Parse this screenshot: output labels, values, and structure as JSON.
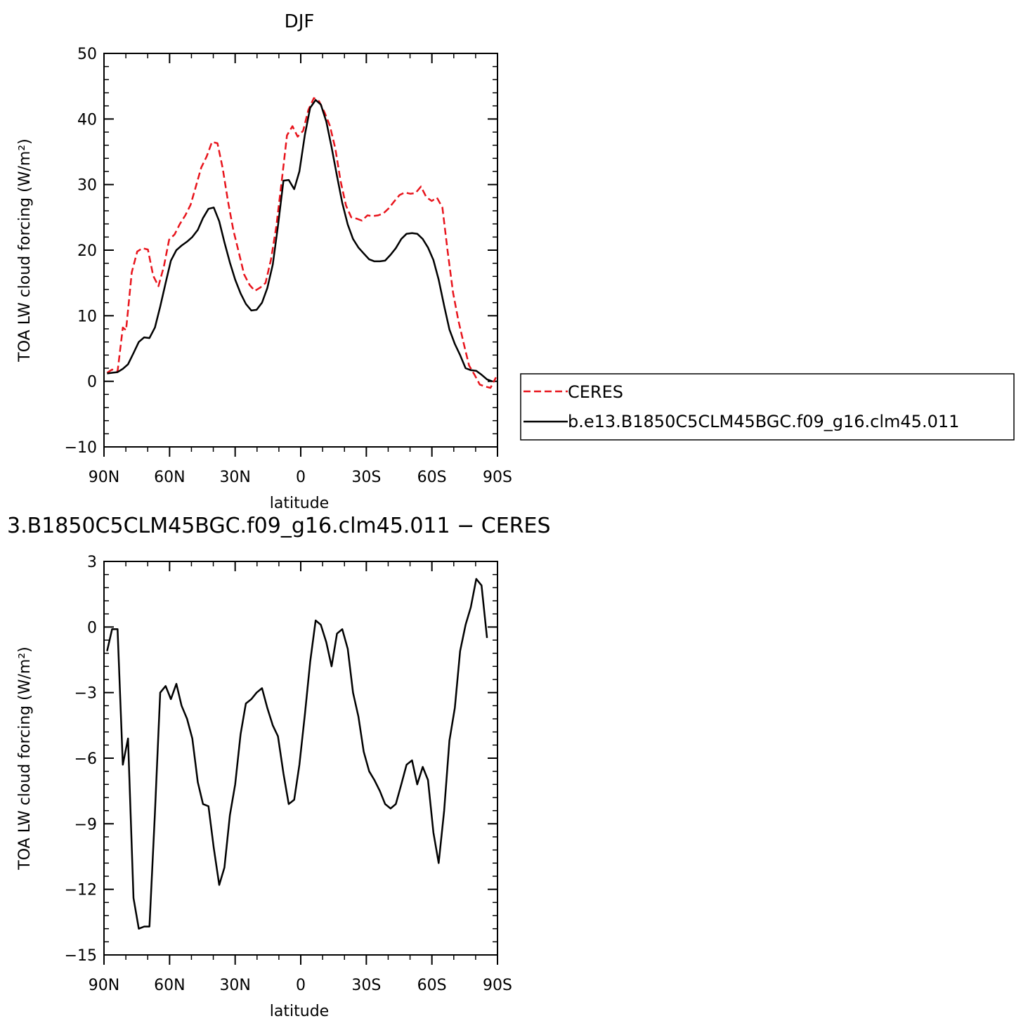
{
  "chart_data": [
    {
      "type": "line",
      "title": "DJF",
      "xlabel": "latitude",
      "ylabel": "TOA LW cloud forcing (W/m²)",
      "xlim": [
        -90,
        90
      ],
      "ylim": [
        -10,
        50
      ],
      "x_ticks": [
        -90,
        -60,
        -30,
        0,
        30,
        60,
        90
      ],
      "x_tick_labels": [
        "90N",
        "60N",
        "30N",
        "0",
        "30S",
        "60S",
        "90S"
      ],
      "y_ticks": [
        -10,
        0,
        10,
        20,
        30,
        40,
        50
      ],
      "y_tick_labels": [
        "−10",
        "0",
        "10",
        "20",
        "30",
        "40",
        "50"
      ],
      "legend_position": "right",
      "series": [
        {
          "name": "CERES",
          "color": "#e8141c",
          "dash": "dashed",
          "points": [
            [
              -88.6,
              1.3
            ],
            [
              -86.3,
              1.8
            ],
            [
              -83.8,
              1.5
            ],
            [
              -81.4,
              8.2
            ],
            [
              -79.9,
              7.8
            ],
            [
              -77.3,
              16.6
            ],
            [
              -74.8,
              19.8
            ],
            [
              -72.4,
              20.3
            ],
            [
              -69.9,
              20.1
            ],
            [
              -67.5,
              16.1
            ],
            [
              -65.1,
              14.5
            ],
            [
              -62.6,
              17.5
            ],
            [
              -60.2,
              21.6
            ],
            [
              -57.7,
              22.4
            ],
            [
              -55.3,
              24.0
            ],
            [
              -52.8,
              25.3
            ],
            [
              -50.4,
              26.9
            ],
            [
              -47.9,
              29.8
            ],
            [
              -45.5,
              32.6
            ],
            [
              -43.0,
              34.3
            ],
            [
              -40.6,
              36.5
            ],
            [
              -38.1,
              36.3
            ],
            [
              -35.7,
              32.5
            ],
            [
              -33.2,
              27.3
            ],
            [
              -30.8,
              23.0
            ],
            [
              -28.3,
              19.6
            ],
            [
              -25.9,
              16.3
            ],
            [
              -23.4,
              14.7
            ],
            [
              -21.0,
              13.8
            ],
            [
              -18.5,
              14.3
            ],
            [
              -16.1,
              15.0
            ],
            [
              -13.6,
              18.6
            ],
            [
              -11.2,
              23.6
            ],
            [
              -8.7,
              30.5
            ],
            [
              -6.3,
              37.5
            ],
            [
              -3.8,
              38.9
            ],
            [
              -1.4,
              37.3
            ],
            [
              1.1,
              38.2
            ],
            [
              3.5,
              41.4
            ],
            [
              6.0,
              43.2
            ],
            [
              8.4,
              42.7
            ],
            [
              10.9,
              41.0
            ],
            [
              13.3,
              39.0
            ],
            [
              15.8,
              35.5
            ],
            [
              18.2,
              30.6
            ],
            [
              20.7,
              26.8
            ],
            [
              23.1,
              25.0
            ],
            [
              25.6,
              24.8
            ],
            [
              28.0,
              24.5
            ],
            [
              30.5,
              25.3
            ],
            [
              32.9,
              25.2
            ],
            [
              35.4,
              25.3
            ],
            [
              37.8,
              25.6
            ],
            [
              40.3,
              26.4
            ],
            [
              42.7,
              27.4
            ],
            [
              45.2,
              28.4
            ],
            [
              47.6,
              28.8
            ],
            [
              50.1,
              28.6
            ],
            [
              52.5,
              28.7
            ],
            [
              55.0,
              29.7
            ],
            [
              57.4,
              28.1
            ],
            [
              59.9,
              27.5
            ],
            [
              62.3,
              28.0
            ],
            [
              64.8,
              26.5
            ],
            [
              67.2,
              19.8
            ],
            [
              69.7,
              13.5
            ],
            [
              72.1,
              9.3
            ],
            [
              74.6,
              5.7
            ],
            [
              77.0,
              2.4
            ],
            [
              79.5,
              1.0
            ],
            [
              81.9,
              -0.5
            ],
            [
              84.4,
              -0.8
            ],
            [
              86.8,
              -1.0
            ],
            [
              89.3,
              0.6
            ]
          ]
        },
        {
          "name": "b.e13.B1850C5CLM45BGC.f09_g16.clm45.011",
          "color": "#000000",
          "dash": "solid",
          "points": [
            [
              -88.6,
              1.2
            ],
            [
              -86.3,
              1.3
            ],
            [
              -83.8,
              1.4
            ],
            [
              -81.4,
              1.9
            ],
            [
              -79.0,
              2.6
            ],
            [
              -76.5,
              4.3
            ],
            [
              -74.1,
              6.0
            ],
            [
              -71.6,
              6.7
            ],
            [
              -69.2,
              6.6
            ],
            [
              -66.7,
              8.2
            ],
            [
              -64.3,
              11.4
            ],
            [
              -61.8,
              15.0
            ],
            [
              -59.4,
              18.4
            ],
            [
              -56.9,
              20.0
            ],
            [
              -54.5,
              20.7
            ],
            [
              -52.0,
              21.3
            ],
            [
              -49.6,
              22.0
            ],
            [
              -47.1,
              23.1
            ],
            [
              -44.7,
              24.9
            ],
            [
              -42.2,
              26.3
            ],
            [
              -39.8,
              26.5
            ],
            [
              -37.3,
              24.4
            ],
            [
              -34.9,
              21.2
            ],
            [
              -32.4,
              18.1
            ],
            [
              -30.0,
              15.5
            ],
            [
              -27.5,
              13.4
            ],
            [
              -25.1,
              11.8
            ],
            [
              -22.6,
              10.8
            ],
            [
              -20.2,
              10.9
            ],
            [
              -17.7,
              12.0
            ],
            [
              -15.3,
              14.2
            ],
            [
              -12.8,
              17.8
            ],
            [
              -10.4,
              23.7
            ],
            [
              -7.9,
              30.6
            ],
            [
              -5.5,
              30.7
            ],
            [
              -3.0,
              29.3
            ],
            [
              -0.6,
              32.0
            ],
            [
              1.9,
              37.6
            ],
            [
              4.3,
              41.7
            ],
            [
              6.8,
              42.9
            ],
            [
              9.2,
              42.2
            ],
            [
              11.7,
              39.6
            ],
            [
              14.1,
              35.7
            ],
            [
              16.6,
              31.3
            ],
            [
              19.0,
              27.2
            ],
            [
              21.5,
              23.9
            ],
            [
              23.9,
              21.7
            ],
            [
              26.4,
              20.4
            ],
            [
              28.8,
              19.5
            ],
            [
              31.3,
              18.6
            ],
            [
              33.7,
              18.3
            ],
            [
              36.2,
              18.3
            ],
            [
              38.6,
              18.4
            ],
            [
              41.1,
              19.3
            ],
            [
              43.5,
              20.3
            ],
            [
              46.0,
              21.7
            ],
            [
              48.4,
              22.5
            ],
            [
              50.9,
              22.6
            ],
            [
              53.3,
              22.5
            ],
            [
              55.8,
              21.7
            ],
            [
              58.2,
              20.4
            ],
            [
              60.7,
              18.5
            ],
            [
              63.1,
              15.5
            ],
            [
              65.6,
              11.5
            ],
            [
              68.0,
              7.9
            ],
            [
              70.5,
              5.7
            ],
            [
              72.9,
              4.0
            ],
            [
              75.4,
              2.0
            ],
            [
              77.8,
              1.7
            ],
            [
              80.3,
              1.6
            ],
            [
              82.7,
              1.0
            ],
            [
              85.2,
              0.3
            ],
            [
              87.6,
              0.0
            ]
          ]
        }
      ]
    },
    {
      "type": "line",
      "title": "3.B1850C5CLM45BGC.f09_g16.clm45.011 − CERES",
      "xlabel": "latitude",
      "ylabel": "TOA LW cloud forcing (W/m²)",
      "xlim": [
        -90,
        90
      ],
      "ylim": [
        -15,
        3
      ],
      "x_ticks": [
        -90,
        -60,
        -30,
        0,
        30,
        60,
        90
      ],
      "x_tick_labels": [
        "90N",
        "60N",
        "30N",
        "0",
        "30S",
        "60S",
        "90S"
      ],
      "y_ticks": [
        -15,
        -12,
        -9,
        -6,
        -3,
        0,
        3
      ],
      "y_tick_labels": [
        "−15",
        "−12",
        "−9",
        "−6",
        "−3",
        "0",
        "3"
      ],
      "series": [
        {
          "color": "#000000",
          "dash": "solid",
          "points": [
            [
              -88.6,
              -1.1
            ],
            [
              -86.3,
              -0.1
            ],
            [
              -83.8,
              -0.1
            ],
            [
              -81.4,
              -6.3
            ],
            [
              -79.0,
              -5.1
            ],
            [
              -76.5,
              -12.4
            ],
            [
              -74.1,
              -13.8
            ],
            [
              -71.6,
              -13.7
            ],
            [
              -69.2,
              -13.7
            ],
            [
              -66.7,
              -8.5
            ],
            [
              -64.3,
              -3.0
            ],
            [
              -61.8,
              -2.7
            ],
            [
              -59.4,
              -3.3
            ],
            [
              -56.9,
              -2.6
            ],
            [
              -54.5,
              -3.6
            ],
            [
              -52.0,
              -4.2
            ],
            [
              -49.6,
              -5.1
            ],
            [
              -47.1,
              -7.1
            ],
            [
              -44.7,
              -8.1
            ],
            [
              -42.2,
              -8.2
            ],
            [
              -39.8,
              -10.1
            ],
            [
              -37.3,
              -11.8
            ],
            [
              -34.9,
              -11.0
            ],
            [
              -32.4,
              -8.6
            ],
            [
              -30.0,
              -7.2
            ],
            [
              -27.5,
              -4.9
            ],
            [
              -25.1,
              -3.5
            ],
            [
              -22.6,
              -3.3
            ],
            [
              -20.2,
              -3.0
            ],
            [
              -17.7,
              -2.8
            ],
            [
              -15.3,
              -3.7
            ],
            [
              -12.8,
              -4.5
            ],
            [
              -10.4,
              -5.0
            ],
            [
              -7.9,
              -6.7
            ],
            [
              -5.5,
              -8.1
            ],
            [
              -3.0,
              -7.9
            ],
            [
              -0.6,
              -6.3
            ],
            [
              1.9,
              -4.0
            ],
            [
              4.3,
              -1.6
            ],
            [
              6.8,
              0.3
            ],
            [
              9.2,
              0.1
            ],
            [
              11.7,
              -0.7
            ],
            [
              14.1,
              -1.8
            ],
            [
              16.6,
              -0.3
            ],
            [
              19.0,
              -0.1
            ],
            [
              21.5,
              -1.0
            ],
            [
              23.9,
              -3.0
            ],
            [
              26.4,
              -4.1
            ],
            [
              28.8,
              -5.7
            ],
            [
              31.3,
              -6.6
            ],
            [
              33.7,
              -7.0
            ],
            [
              36.2,
              -7.5
            ],
            [
              38.6,
              -8.1
            ],
            [
              41.1,
              -8.3
            ],
            [
              43.5,
              -8.1
            ],
            [
              46.0,
              -7.2
            ],
            [
              48.4,
              -6.3
            ],
            [
              50.9,
              -6.1
            ],
            [
              53.3,
              -7.2
            ],
            [
              55.8,
              -6.4
            ],
            [
              58.2,
              -7.0
            ],
            [
              60.7,
              -9.4
            ],
            [
              63.1,
              -10.8
            ],
            [
              65.6,
              -8.4
            ],
            [
              68.0,
              -5.2
            ],
            [
              70.5,
              -3.7
            ],
            [
              72.9,
              -1.1
            ],
            [
              75.4,
              0.1
            ],
            [
              77.8,
              0.9
            ],
            [
              80.3,
              2.2
            ],
            [
              82.7,
              1.9
            ],
            [
              85.2,
              -0.5
            ]
          ]
        }
      ]
    }
  ]
}
